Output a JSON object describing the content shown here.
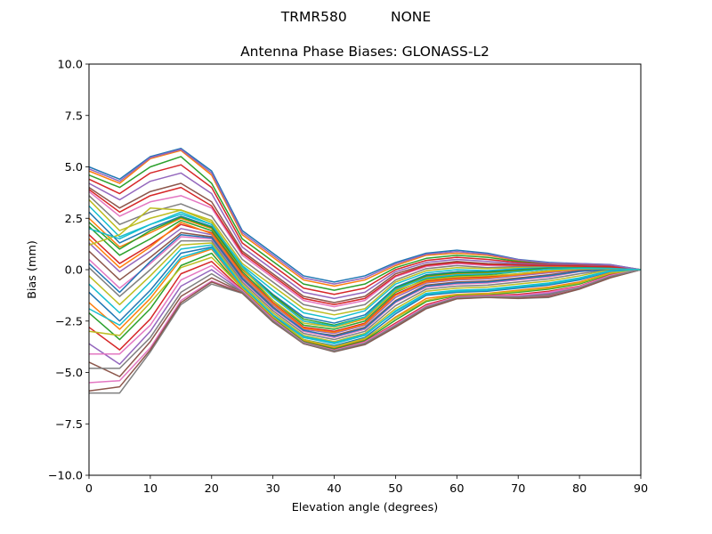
{
  "suptitle": "TRMR580          NONE",
  "chart_data": {
    "type": "line",
    "title": "Antenna Phase Biases: GLONASS-L2",
    "xlabel": "Elevation angle (degrees)",
    "ylabel": "Bias (mm)",
    "xlim": [
      0,
      90
    ],
    "ylim": [
      -10,
      10
    ],
    "xticks": [
      0,
      10,
      20,
      30,
      40,
      50,
      60,
      70,
      80,
      90
    ],
    "xtick_labels": [
      "0",
      "10",
      "20",
      "30",
      "40",
      "50",
      "60",
      "70",
      "80",
      "90"
    ],
    "yticks": [
      -10,
      -7.5,
      -5,
      -2.5,
      0,
      2.5,
      5,
      7.5,
      10
    ],
    "ytick_labels": [
      "−10.0",
      "−7.5",
      "−5.0",
      "−2.5",
      "0.0",
      "2.5",
      "5.0",
      "7.5",
      "10.0"
    ],
    "grid": false,
    "legend": "none",
    "colors": [
      "#1f77b4",
      "#ff7f0e",
      "#2ca02c",
      "#d62728",
      "#9467bd",
      "#8c564b",
      "#e377c2",
      "#7f7f7f",
      "#bcbd22",
      "#17becf"
    ],
    "x": [
      0,
      5,
      10,
      15,
      20,
      25,
      30,
      35,
      40,
      45,
      50,
      55,
      60,
      65,
      70,
      75,
      80,
      85,
      90
    ],
    "series": [
      {
        "values": [
          5.0,
          4.4,
          5.5,
          5.9,
          4.8,
          1.9,
          0.8,
          -0.3,
          -0.6,
          -0.3,
          0.35,
          0.8,
          0.95,
          0.8,
          0.5,
          0.35,
          0.3,
          0.25,
          0.0
        ]
      },
      {
        "values": [
          4.8,
          4.2,
          5.4,
          5.8,
          4.6,
          1.7,
          0.6,
          -0.5,
          -0.8,
          -0.5,
          0.2,
          0.7,
          0.8,
          0.7,
          0.45,
          0.3,
          0.28,
          0.22,
          0.0
        ]
      },
      {
        "values": [
          4.6,
          4.0,
          5.0,
          5.5,
          4.2,
          1.5,
          0.4,
          -0.7,
          -1.0,
          -0.7,
          0.1,
          0.55,
          0.7,
          0.6,
          0.4,
          0.28,
          0.25,
          0.2,
          0.0
        ]
      },
      {
        "values": [
          4.4,
          3.7,
          4.7,
          5.1,
          4.0,
          1.3,
          0.2,
          -0.9,
          -1.2,
          -0.9,
          0.0,
          0.45,
          0.6,
          0.5,
          0.35,
          0.25,
          0.22,
          0.18,
          0.0
        ]
      },
      {
        "values": [
          4.2,
          3.4,
          4.3,
          4.7,
          3.7,
          1.1,
          0.0,
          -1.1,
          -1.4,
          -1.1,
          -0.1,
          0.35,
          0.5,
          0.4,
          0.3,
          0.22,
          0.2,
          0.16,
          0.0
        ]
      },
      {
        "values": [
          4.0,
          3.0,
          3.8,
          4.2,
          3.3,
          0.9,
          -0.2,
          -1.3,
          -1.6,
          -1.3,
          -0.2,
          0.25,
          0.4,
          0.3,
          0.25,
          0.2,
          0.18,
          0.15,
          0.0
        ]
      },
      {
        "values": [
          3.8,
          2.6,
          3.3,
          3.6,
          3.0,
          0.7,
          -0.4,
          -1.5,
          -1.8,
          -1.5,
          -0.35,
          0.15,
          0.3,
          0.2,
          0.2,
          0.18,
          0.15,
          0.13,
          0.0
        ]
      },
      {
        "values": [
          3.6,
          2.2,
          2.8,
          3.2,
          2.6,
          0.5,
          -0.6,
          -1.7,
          -2.0,
          -1.7,
          -0.5,
          0.05,
          0.2,
          0.1,
          0.15,
          0.15,
          0.13,
          0.12,
          0.0
        ]
      },
      {
        "values": [
          3.4,
          1.9,
          2.5,
          2.9,
          2.4,
          0.3,
          -0.8,
          -1.9,
          -2.2,
          -1.9,
          -0.6,
          -0.05,
          0.1,
          0.05,
          0.1,
          0.12,
          0.12,
          0.1,
          0.0
        ]
      },
      {
        "values": [
          3.1,
          1.6,
          2.2,
          2.7,
          2.2,
          0.2,
          -1.0,
          -2.1,
          -2.4,
          -2.0,
          -0.7,
          -0.15,
          0.0,
          -0.05,
          0.05,
          0.1,
          0.1,
          0.09,
          0.0
        ]
      },
      {
        "values": [
          2.8,
          1.3,
          2.0,
          2.6,
          2.1,
          0.1,
          -1.2,
          -2.3,
          -2.6,
          -2.2,
          -0.85,
          -0.25,
          -0.1,
          -0.1,
          0.0,
          0.08,
          0.08,
          0.08,
          0.0
        ]
      },
      {
        "values": [
          2.5,
          1.1,
          1.8,
          2.5,
          2.0,
          0.0,
          -1.3,
          -2.5,
          -2.8,
          -2.4,
          -1.0,
          -0.35,
          -0.2,
          -0.15,
          -0.05,
          0.05,
          0.07,
          0.07,
          0.0
        ]
      },
      {
        "values": [
          2.1,
          0.7,
          1.5,
          2.4,
          1.9,
          -0.1,
          -1.5,
          -2.7,
          -2.9,
          -2.5,
          -1.1,
          -0.45,
          -0.3,
          -0.25,
          -0.1,
          0.03,
          0.05,
          0.06,
          0.0
        ]
      },
      {
        "values": [
          1.7,
          0.3,
          1.2,
          2.2,
          1.8,
          -0.2,
          -1.6,
          -2.8,
          -3.0,
          -2.6,
          -1.2,
          -0.55,
          -0.4,
          -0.35,
          -0.2,
          -0.05,
          0.03,
          0.05,
          0.0
        ]
      },
      {
        "values": [
          1.3,
          -0.1,
          0.9,
          2.0,
          1.7,
          -0.3,
          -1.7,
          -2.9,
          -3.1,
          -2.7,
          -1.35,
          -0.65,
          -0.5,
          -0.45,
          -0.3,
          -0.15,
          0.0,
          0.04,
          0.0
        ]
      },
      {
        "values": [
          0.9,
          -0.5,
          0.6,
          1.8,
          1.6,
          -0.4,
          -1.8,
          -3.0,
          -3.2,
          -2.8,
          -1.5,
          -0.75,
          -0.6,
          -0.55,
          -0.4,
          -0.25,
          -0.05,
          0.03,
          0.0
        ]
      },
      {
        "values": [
          0.5,
          -0.9,
          0.3,
          1.6,
          1.5,
          -0.5,
          -1.9,
          -3.0,
          -3.3,
          -2.9,
          -1.6,
          -0.85,
          -0.7,
          -0.65,
          -0.5,
          -0.35,
          -0.1,
          0.02,
          0.0
        ]
      },
      {
        "values": [
          0.1,
          -1.3,
          0.0,
          1.4,
          1.4,
          -0.6,
          -2.0,
          -3.1,
          -3.4,
          -3.0,
          -1.75,
          -0.95,
          -0.8,
          -0.75,
          -0.6,
          -0.45,
          -0.2,
          0.01,
          0.0
        ]
      },
      {
        "values": [
          -0.3,
          -1.7,
          -0.3,
          1.2,
          1.3,
          -0.7,
          -2.1,
          -3.2,
          -3.5,
          -3.1,
          -1.9,
          -1.05,
          -0.9,
          -0.85,
          -0.7,
          -0.55,
          -0.3,
          0.0,
          0.0
        ]
      },
      {
        "values": [
          -0.7,
          -2.1,
          -0.6,
          1.0,
          1.2,
          -0.8,
          -2.2,
          -3.3,
          -3.6,
          -3.2,
          -2.0,
          -1.15,
          -1.0,
          -0.95,
          -0.8,
          -0.65,
          -0.4,
          -0.05,
          0.0
        ]
      },
      {
        "values": [
          -1.1,
          -2.5,
          -1.0,
          0.8,
          1.1,
          -0.85,
          -2.25,
          -3.4,
          -3.7,
          -3.3,
          -2.15,
          -1.25,
          -1.1,
          -1.05,
          -0.9,
          -0.75,
          -0.5,
          -0.1,
          0.0
        ]
      },
      {
        "values": [
          -1.6,
          -2.9,
          -1.4,
          0.5,
          1.0,
          -0.9,
          -2.3,
          -3.45,
          -3.8,
          -3.4,
          -2.3,
          -1.4,
          -1.2,
          -1.15,
          -1.0,
          -0.85,
          -0.6,
          -0.15,
          0.0
        ]
      },
      {
        "values": [
          -2.1,
          -3.4,
          -1.9,
          0.2,
          0.8,
          -0.95,
          -2.35,
          -3.5,
          -3.85,
          -3.45,
          -2.45,
          -1.55,
          -1.25,
          -1.2,
          -1.1,
          -0.95,
          -0.7,
          -0.2,
          0.0
        ]
      },
      {
        "values": [
          -2.8,
          -3.9,
          -2.4,
          -0.2,
          0.4,
          -1.0,
          -2.4,
          -3.55,
          -3.9,
          -3.5,
          -2.6,
          -1.7,
          -1.3,
          -1.25,
          -1.2,
          -1.05,
          -0.8,
          -0.25,
          0.0
        ]
      },
      {
        "values": [
          -3.6,
          -4.6,
          -3.0,
          -0.8,
          0.0,
          -1.05,
          -2.45,
          -3.55,
          -3.95,
          -3.55,
          -2.7,
          -1.8,
          -1.35,
          -1.3,
          -1.3,
          -1.15,
          -0.85,
          -0.3,
          0.0
        ]
      },
      {
        "values": [
          -4.5,
          -5.2,
          -3.5,
          -1.3,
          -0.4,
          -1.1,
          -2.5,
          -3.6,
          -3.95,
          -3.6,
          -2.75,
          -1.85,
          -1.38,
          -1.32,
          -1.35,
          -1.25,
          -0.9,
          -0.35,
          0.0
        ]
      },
      {
        "values": [
          -5.5,
          -5.4,
          -3.8,
          -1.5,
          -0.55,
          -1.12,
          -2.5,
          -3.6,
          -3.96,
          -3.62,
          -2.78,
          -1.88,
          -1.4,
          -1.33,
          -1.38,
          -1.3,
          -0.92,
          -0.38,
          0.0
        ]
      },
      {
        "values": [
          -6.0,
          -6.0,
          -4.0,
          -1.7,
          -0.7,
          -1.15,
          -2.55,
          -3.6,
          -4.0,
          -3.65,
          -2.8,
          -1.9,
          -1.42,
          -1.35,
          -1.4,
          -1.35,
          -0.95,
          -0.4,
          0.0
        ]
      },
      {
        "values": [
          -3.0,
          -3.2,
          -1.6,
          0.1,
          0.6,
          -0.9,
          -2.3,
          -3.4,
          -3.75,
          -3.35,
          -2.35,
          -1.5,
          -1.22,
          -1.18,
          -1.05,
          -0.9,
          -0.65,
          -0.18,
          0.0
        ]
      },
      {
        "values": [
          -1.9,
          -2.7,
          -1.2,
          0.6,
          1.05,
          -0.8,
          -2.2,
          -3.25,
          -3.55,
          -3.15,
          -2.05,
          -1.2,
          -1.05,
          -1.0,
          -0.85,
          -0.7,
          -0.45,
          -0.08,
          0.0
        ]
      },
      {
        "values": [
          0.3,
          -1.1,
          0.4,
          1.7,
          1.55,
          -0.45,
          -1.85,
          -2.95,
          -3.25,
          -2.85,
          -1.55,
          -0.8,
          -0.65,
          -0.6,
          -0.45,
          -0.3,
          -0.08,
          0.02,
          0.0
        ]
      },
      {
        "values": [
          1.5,
          0.1,
          1.1,
          2.3,
          1.75,
          -0.25,
          -1.65,
          -2.85,
          -3.05,
          -2.65,
          -1.25,
          -0.6,
          -0.45,
          -0.4,
          -0.25,
          -0.1,
          0.02,
          0.05,
          0.0
        ]
      },
      {
        "values": [
          2.3,
          1.0,
          1.9,
          2.55,
          2.05,
          0.05,
          -1.25,
          -2.4,
          -2.7,
          -2.3,
          -0.9,
          -0.3,
          -0.15,
          -0.12,
          -0.02,
          0.06,
          0.08,
          0.07,
          0.0
        ]
      },
      {
        "values": [
          3.9,
          2.8,
          3.6,
          4.0,
          3.1,
          0.8,
          -0.3,
          -1.4,
          -1.7,
          -1.4,
          -0.3,
          0.2,
          0.35,
          0.25,
          0.22,
          0.19,
          0.17,
          0.14,
          0.0
        ]
      },
      {
        "values": [
          4.9,
          4.3,
          5.45,
          5.85,
          4.7,
          1.8,
          0.7,
          -0.4,
          -0.7,
          -0.4,
          0.28,
          0.75,
          0.88,
          0.75,
          0.48,
          0.32,
          0.29,
          0.24,
          0.0
        ]
      },
      {
        "values": [
          -5.9,
          -5.7,
          -3.9,
          -1.6,
          -0.6,
          -1.13,
          -2.52,
          -3.6,
          -3.98,
          -3.63,
          -2.79,
          -1.89,
          -1.41,
          -1.34,
          -1.39,
          -1.32,
          -0.94,
          -0.39,
          0.0
        ]
      },
      {
        "values": [
          -4.1,
          -4.1,
          -2.7,
          -0.5,
          0.2,
          -1.02,
          -2.42,
          -3.55,
          -3.92,
          -3.52,
          -2.65,
          -1.75,
          -1.32,
          -1.27,
          -1.25,
          -1.1,
          -0.82,
          -0.28,
          0.0
        ]
      },
      {
        "values": [
          -4.8,
          -4.8,
          -3.3,
          -1.1,
          -0.2,
          -1.08,
          -2.48,
          -3.58,
          -3.95,
          -3.58,
          -2.72,
          -1.82,
          -1.36,
          -1.31,
          -1.33,
          -1.2,
          -0.88,
          -0.33,
          0.0
        ]
      },
      {
        "values": [
          1.2,
          1.7,
          3.0,
          2.9,
          2.3,
          0.1,
          -1.5,
          -2.6,
          -2.8,
          -2.35,
          -1.05,
          -0.5,
          -0.35,
          -0.3,
          -0.2,
          -0.05,
          0.03,
          0.05,
          0.0
        ]
      },
      {
        "values": [
          2.0,
          1.5,
          2.2,
          2.8,
          2.2,
          0.15,
          -1.35,
          -2.5,
          -2.75,
          -2.3,
          -0.95,
          -0.4,
          -0.25,
          -0.2,
          -0.1,
          0.02,
          0.06,
          0.06,
          0.0
        ]
      }
    ]
  }
}
